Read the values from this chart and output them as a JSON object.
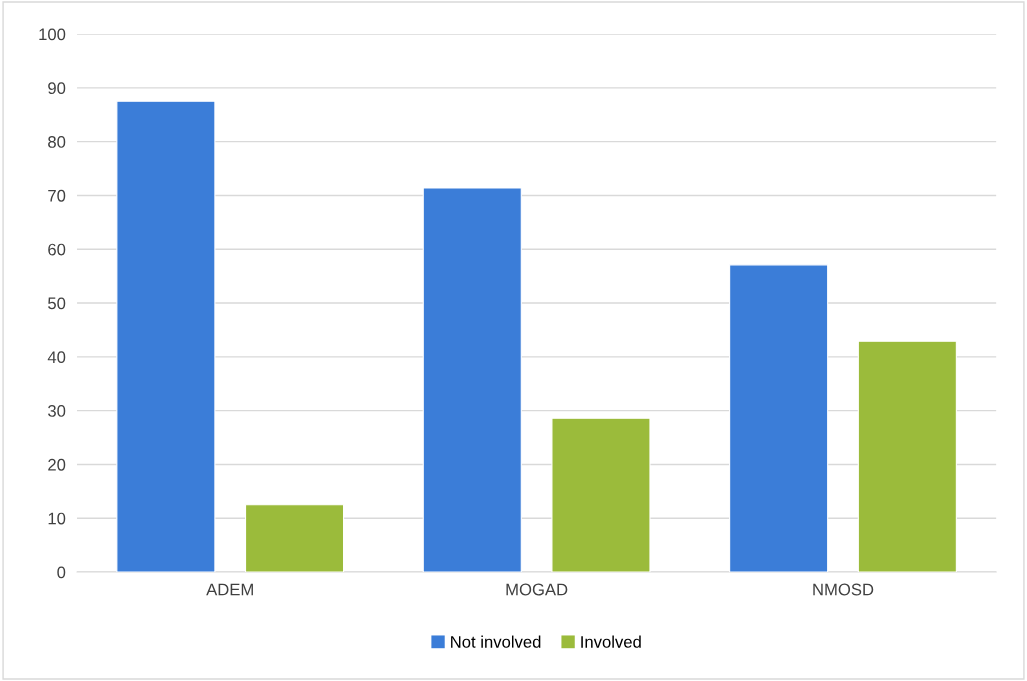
{
  "chart_data": {
    "type": "bar",
    "categories": [
      "ADEM",
      "MOGAD",
      "NMOSD"
    ],
    "series": [
      {
        "name": "Not involved",
        "color": "#3b7dd8",
        "values": [
          87.5,
          71.4,
          57.1
        ]
      },
      {
        "name": "Involved",
        "color": "#9bbb3b",
        "values": [
          12.5,
          28.6,
          42.9
        ]
      }
    ],
    "ylim": [
      0,
      100
    ],
    "yticks": [
      0,
      10,
      20,
      30,
      40,
      50,
      60,
      70,
      80,
      90,
      100
    ],
    "grid": "y",
    "legend": "bottom"
  }
}
